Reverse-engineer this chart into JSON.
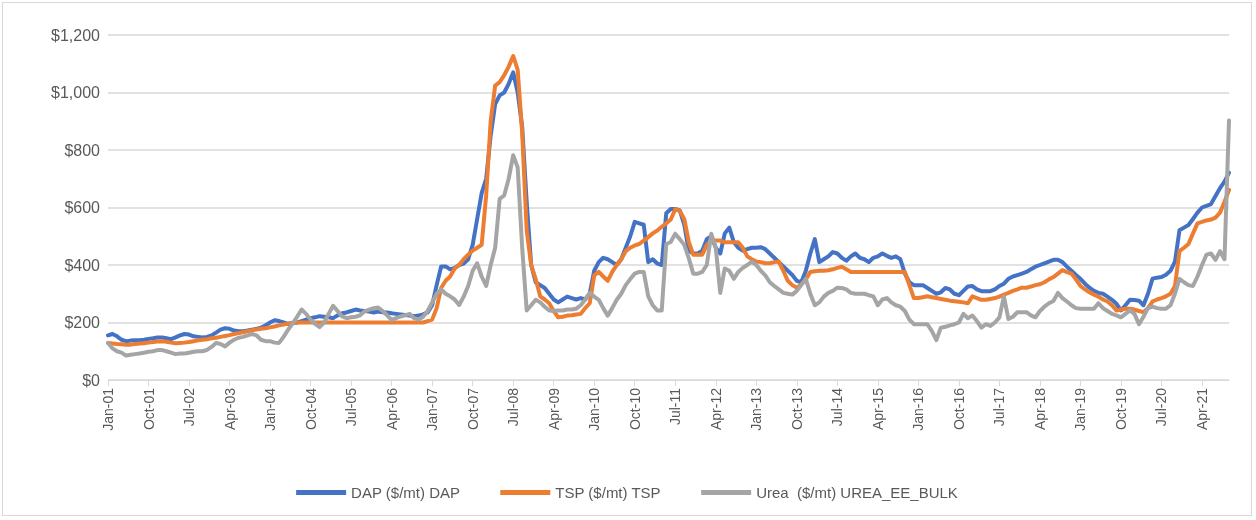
{
  "chart_data": {
    "type": "line",
    "categories": [
      "Jan-01",
      null,
      null,
      null,
      null,
      null,
      null,
      null,
      null,
      "Oct-01",
      null,
      null,
      null,
      null,
      null,
      null,
      null,
      null,
      "Jul-02",
      null,
      null,
      null,
      null,
      null,
      null,
      null,
      null,
      "Apr-03",
      null,
      null,
      null,
      null,
      null,
      null,
      null,
      null,
      "Jan-04",
      null,
      null,
      null,
      null,
      null,
      null,
      null,
      null,
      "Oct-04",
      null,
      null,
      null,
      null,
      null,
      null,
      null,
      null,
      "Jul-05",
      null,
      null,
      null,
      null,
      null,
      null,
      null,
      null,
      "Apr-06",
      null,
      null,
      null,
      null,
      null,
      null,
      null,
      null,
      "Jan-07",
      null,
      null,
      null,
      null,
      null,
      null,
      null,
      null,
      "Oct-07",
      null,
      null,
      null,
      null,
      null,
      null,
      null,
      null,
      "Jul-08",
      null,
      null,
      null,
      null,
      null,
      null,
      null,
      null,
      "Apr-09",
      null,
      null,
      null,
      null,
      null,
      null,
      null,
      null,
      "Jan-10",
      null,
      null,
      null,
      null,
      null,
      null,
      null,
      null,
      "Oct-10",
      null,
      null,
      null,
      null,
      null,
      null,
      null,
      null,
      "Jul-11",
      null,
      null,
      null,
      null,
      null,
      null,
      null,
      null,
      "Apr-12",
      null,
      null,
      null,
      null,
      null,
      null,
      null,
      null,
      "Jan-13",
      null,
      null,
      null,
      null,
      null,
      null,
      null,
      null,
      "Oct-13",
      null,
      null,
      null,
      null,
      null,
      null,
      null,
      null,
      "Jul-14",
      null,
      null,
      null,
      null,
      null,
      null,
      null,
      null,
      "Apr-15",
      null,
      null,
      null,
      null,
      null,
      null,
      null,
      null,
      "Jan-16",
      null,
      null,
      null,
      null,
      null,
      null,
      null,
      null,
      "Oct-16",
      null,
      null,
      null,
      null,
      null,
      null,
      null,
      null,
      "Jul-17",
      null,
      null,
      null,
      null,
      null,
      null,
      null,
      null,
      "Apr-18",
      null,
      null,
      null,
      null,
      null,
      null,
      null,
      null,
      "Jan-19",
      null,
      null,
      null,
      null,
      null,
      null,
      null,
      null,
      "Oct-19",
      null,
      null,
      null,
      null,
      null,
      null,
      null,
      null,
      "Jul-20",
      null,
      null,
      null,
      null,
      null,
      null,
      null,
      null,
      "Apr-21",
      null,
      null,
      null,
      null,
      null,
      null
    ],
    "series": [
      {
        "name": "DAP ($/mt) DAP",
        "color": "#4472c4",
        "values": [
          155,
          160,
          152,
          140,
          135,
          137,
          138,
          138,
          140,
          143,
          145,
          148,
          148,
          145,
          142,
          148,
          155,
          160,
          158,
          152,
          150,
          148,
          150,
          155,
          165,
          175,
          180,
          178,
          172,
          170,
          170,
          172,
          175,
          178,
          182,
          190,
          200,
          208,
          205,
          200,
          195,
          198,
          200,
          205,
          210,
          215,
          218,
          222,
          220,
          218,
          215,
          225,
          232,
          235,
          240,
          245,
          242,
          240,
          238,
          235,
          238,
          236,
          235,
          232,
          230,
          228,
          226,
          224,
          222,
          224,
          228,
          235,
          260,
          330,
          395,
          395,
          385,
          390,
          400,
          405,
          420,
          470,
          560,
          650,
          700,
          850,
          960,
          990,
          1000,
          1030,
          1070,
          1000,
          880,
          620,
          400,
          340,
          330,
          320,
          300,
          280,
          270,
          280,
          290,
          285,
          280,
          285,
          280,
          300,
          380,
          410,
          425,
          420,
          410,
          400,
          420,
          460,
          500,
          550,
          545,
          540,
          410,
          420,
          405,
          400,
          580,
          595,
          595,
          590,
          540,
          450,
          440,
          440,
          450,
          490,
          500,
          460,
          440,
          510,
          530,
          480,
          460,
          450,
          455,
          460,
          460,
          462,
          455,
          440,
          425,
          410,
          395,
          380,
          365,
          345,
          340,
          380,
          440,
          490,
          410,
          420,
          430,
          445,
          440,
          425,
          415,
          430,
          440,
          425,
          420,
          410,
          425,
          430,
          440,
          432,
          425,
          430,
          420,
          370,
          340,
          330,
          330,
          330,
          320,
          310,
          300,
          305,
          320,
          315,
          300,
          295,
          310,
          325,
          327,
          315,
          309,
          309,
          309,
          315,
          327,
          335,
          352,
          360,
          365,
          370,
          376,
          385,
          394,
          400,
          406,
          412,
          418,
          418,
          410,
          394,
          380,
          365,
          352,
          335,
          321,
          310,
          303,
          300,
          290,
          279,
          265,
          242,
          260,
          279,
          278,
          276,
          260,
          300,
          352,
          356,
          358,
          366,
          380,
          412,
          521,
          530,
          539,
          560,
          582,
          600,
          606,
          612,
          640,
          667,
          690,
          721
        ]
      },
      {
        "name": "TSP ($/mt) TSP",
        "color": "#ed7d31",
        "values": [
          129,
          127,
          125,
          124,
          123,
          123,
          125,
          127,
          128,
          130,
          132,
          134,
          135,
          133,
          130,
          128,
          129,
          130,
          132,
          135,
          138,
          140,
          142,
          145,
          147,
          150,
          153,
          156,
          160,
          163,
          166,
          170,
          173,
          176,
          178,
          180,
          183,
          186,
          190,
          193,
          196,
          199,
          200,
          200,
          200,
          200,
          200,
          200,
          200,
          200,
          200,
          200,
          200,
          200,
          200,
          200,
          200,
          200,
          200,
          200,
          200,
          200,
          200,
          200,
          200,
          200,
          200,
          200,
          200,
          200,
          200,
          205,
          210,
          250,
          320,
          345,
          360,
          388,
          400,
          420,
          436,
          450,
          460,
          470,
          642,
          900,
          1024,
          1036,
          1060,
          1090,
          1127,
          1079,
          860,
          521,
          400,
          351,
          291,
          280,
          267,
          240,
          218,
          220,
          224,
          225,
          228,
          230,
          250,
          267,
          364,
          376,
          360,
          345,
          376,
          400,
          420,
          448,
          460,
          468,
          473,
          485,
          497,
          510,
          520,
          533,
          545,
          558,
          594,
          588,
          560,
          480,
          436,
          436,
          436,
          470,
          485,
          485,
          485,
          479,
          479,
          479,
          479,
          460,
          430,
          420,
          412,
          410,
          406,
          406,
          410,
          412,
          380,
          345,
          330,
          321,
          333,
          350,
          376,
          378,
          380,
          380,
          382,
          385,
          390,
          394,
          385,
          376,
          376,
          376,
          376,
          376,
          376,
          376,
          376,
          376,
          376,
          376,
          376,
          376,
          330,
          285,
          285,
          288,
          291,
          288,
          285,
          282,
          279,
          276,
          274,
          272,
          270,
          267,
          291,
          285,
          279,
          279,
          282,
          285,
          290,
          297,
          303,
          310,
          315,
          321,
          321,
          325,
          330,
          333,
          340,
          350,
          358,
          370,
          382,
          375,
          370,
          350,
          327,
          315,
          305,
          297,
          290,
          280,
          273,
          260,
          242,
          245,
          248,
          248,
          245,
          240,
          236,
          250,
          273,
          280,
          285,
          291,
          300,
          327,
          448,
          460,
          473,
          510,
          545,
          550,
          555,
          558,
          565,
          582,
          620,
          661
        ]
      },
      {
        "name": "Urea  ($/mt) UREA_EE_BULK",
        "color": "#a5a5a5",
        "values": [
          129,
          110,
          100,
          95,
          85,
          88,
          90,
          92,
          95,
          98,
          100,
          104,
          104,
          100,
          95,
          90,
          92,
          92,
          95,
          98,
          100,
          100,
          105,
          115,
          129,
          125,
          117,
          130,
          140,
          147,
          150,
          155,
          160,
          155,
          140,
          135,
          135,
          130,
          129,
          150,
          175,
          196,
          220,
          245,
          230,
          210,
          195,
          184,
          200,
          230,
          258,
          240,
          221,
          215,
          218,
          220,
          225,
          239,
          245,
          250,
          252,
          240,
          225,
          209,
          215,
          221,
          225,
          230,
          215,
          210,
          220,
          240,
          270,
          300,
          315,
          300,
          291,
          280,
          261,
          290,
          327,
          380,
          406,
          360,
          327,
          400,
          460,
          630,
          642,
          700,
          782,
          739,
          460,
          242,
          260,
          279,
          270,
          255,
          242,
          240,
          242,
          242,
          245,
          245,
          248,
          260,
          280,
          303,
          290,
          279,
          250,
          224,
          250,
          279,
          300,
          330,
          351,
          370,
          376,
          376,
          291,
          260,
          242,
          242,
          473,
          480,
          509,
          490,
          470,
          424,
          370,
          370,
          376,
          400,
          509,
          460,
          303,
          388,
          380,
          352,
          376,
          390,
          400,
          412,
          400,
          380,
          364,
          340,
          327,
          315,
          303,
          300,
          297,
          310,
          330,
          352,
          300,
          260,
          270,
          290,
          303,
          310,
          321,
          320,
          315,
          303,
          300,
          300,
          300,
          295,
          291,
          260,
          280,
          285,
          270,
          260,
          255,
          240,
          210,
          194,
          194,
          194,
          194,
          170,
          139,
          182,
          185,
          190,
          194,
          200,
          230,
          215,
          224,
          205,
          182,
          194,
          188,
          200,
          218,
          291,
          212,
          220,
          236,
          236,
          236,
          225,
          218,
          240,
          255,
          267,
          275,
          303,
          285,
          273,
          260,
          250,
          248,
          248,
          248,
          248,
          267,
          250,
          240,
          230,
          225,
          218,
          230,
          242,
          230,
          194,
          220,
          250,
          255,
          250,
          248,
          248,
          260,
          300,
          352,
          340,
          330,
          327,
          360,
          400,
          436,
          440,
          418,
          448,
          420,
          903
        ]
      }
    ],
    "ylim": [
      0,
      1200
    ],
    "yticks": [
      {
        "value": 0,
        "label": "$0"
      },
      {
        "value": 200,
        "label": "$200"
      },
      {
        "value": 400,
        "label": "$400"
      },
      {
        "value": 600,
        "label": "$600"
      },
      {
        "value": 800,
        "label": "$800"
      },
      {
        "value": 1000,
        "label": "$1,000"
      },
      {
        "value": 1200,
        "label": "$1,200"
      }
    ],
    "grid": "y",
    "legend": "bottom",
    "marker": "none",
    "line_style": "solid"
  }
}
